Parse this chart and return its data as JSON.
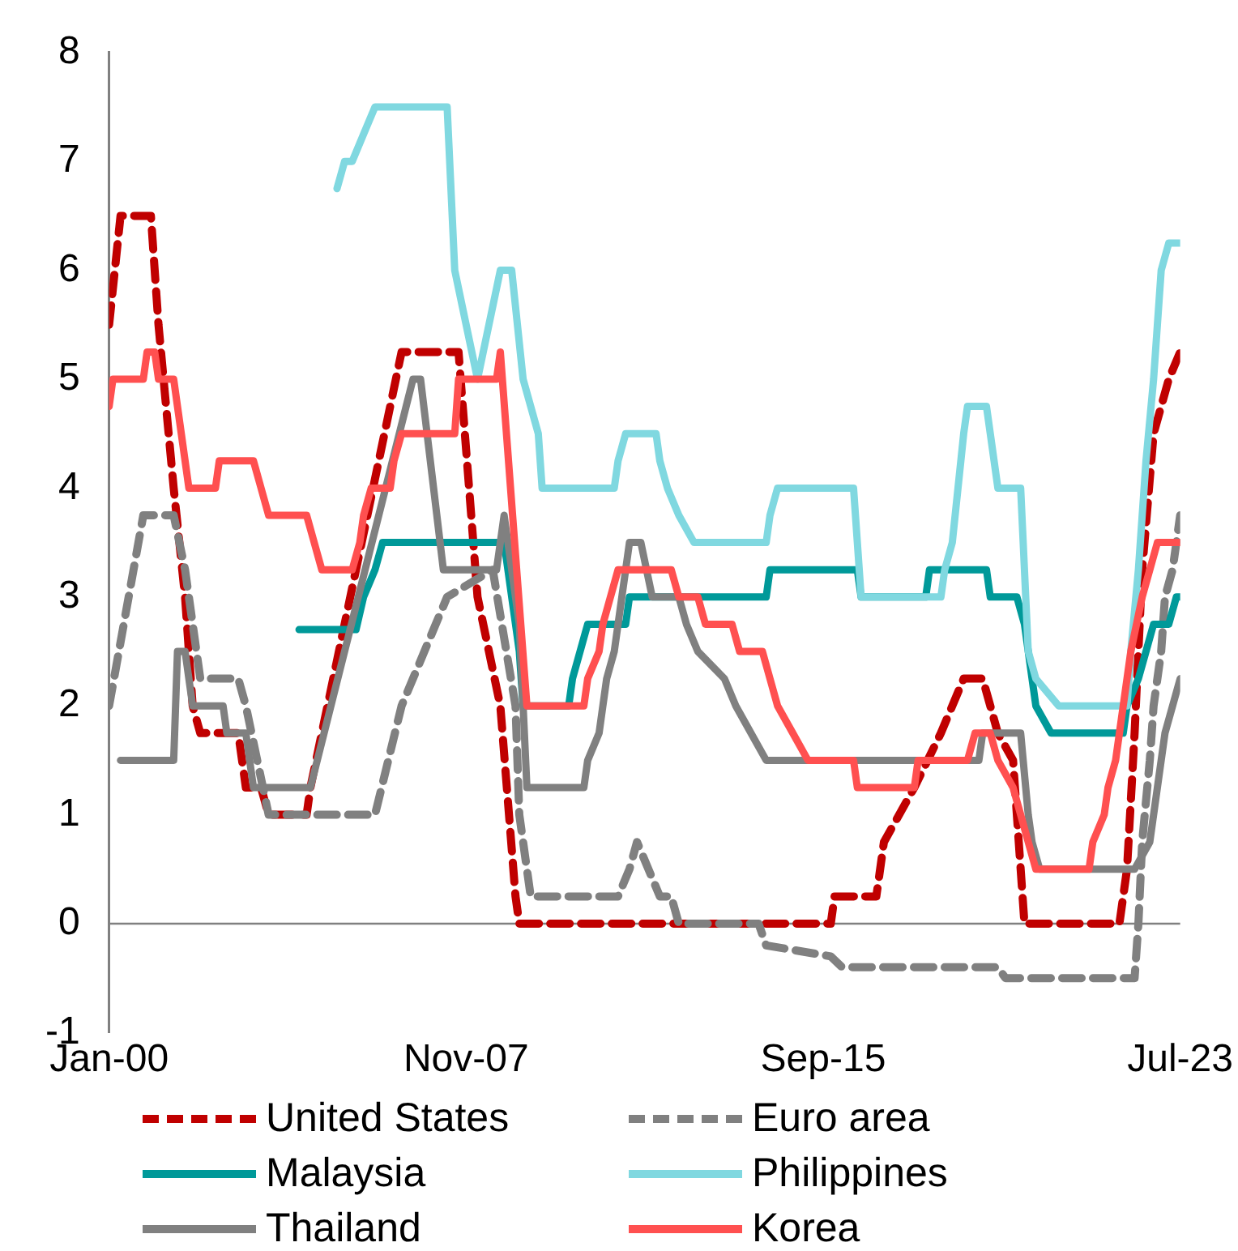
{
  "chart_data": {
    "type": "line",
    "xlim": [
      "2000-01",
      "2023-07"
    ],
    "xticks": [
      {
        "value": "2000-01",
        "label": "Jan-00"
      },
      {
        "value": "2007-11",
        "label": "Nov-07"
      },
      {
        "value": "2015-09",
        "label": "Sep-15"
      },
      {
        "value": "2023-07",
        "label": "Jul-23"
      }
    ],
    "ylim": [
      -1,
      8
    ],
    "yticks": [
      -1,
      0,
      1,
      2,
      3,
      4,
      5,
      6,
      7,
      8
    ],
    "grid": false,
    "legend": "bottom",
    "marker": "none",
    "ref_lines": [
      {
        "axis": "y",
        "value": 0,
        "color": "#808080"
      }
    ],
    "series": [
      {
        "name": "United States",
        "color": "#c00000",
        "line_style": "dashed",
        "x": [
          "2000-01",
          "2000-04",
          "2000-12",
          "2001-02",
          "2001-06",
          "2001-09",
          "2001-11",
          "2002-01",
          "2002-11",
          "2003-01",
          "2003-05",
          "2003-07",
          "2004-05",
          "2004-06",
          "2006-06",
          "2007-09",
          "2008-02",
          "2008-08",
          "2008-12",
          "2009-01",
          "2015-11",
          "2015-12",
          "2016-11",
          "2017-01",
          "2017-09",
          "2018-04",
          "2018-10",
          "2019-03",
          "2019-07",
          "2019-11",
          "2020-02",
          "2022-03",
          "2022-05",
          "2022-07",
          "2022-09",
          "2022-12",
          "2023-04",
          "2023-07"
        ],
        "values": [
          5.5,
          6.5,
          6.5,
          5.5,
          4.0,
          3.0,
          2.0,
          1.75,
          1.75,
          1.25,
          1.25,
          1.0,
          1.0,
          1.25,
          5.25,
          5.25,
          3.0,
          2.0,
          0.25,
          0,
          0,
          0.25,
          0.25,
          0.75,
          1.25,
          1.75,
          2.25,
          2.25,
          1.75,
          1.5,
          0,
          0,
          0.5,
          1.75,
          3.25,
          4.5,
          5.0,
          5.25
        ]
      },
      {
        "name": "Euro area",
        "color": "#808080",
        "line_style": "dashed",
        "x": [
          "2000-01",
          "2000-10",
          "2001-06",
          "2001-09",
          "2002-01",
          "2002-11",
          "2003-01",
          "2003-07",
          "2005-11",
          "2006-06",
          "2007-06",
          "2008-06",
          "2008-12",
          "2009-01",
          "2009-04",
          "2011-03",
          "2011-06",
          "2011-08",
          "2012-02",
          "2012-05",
          "2012-07",
          "2014-04",
          "2014-06",
          "2015-11",
          "2016-02",
          "2019-07",
          "2019-09",
          "2022-07",
          "2022-08",
          "2022-09",
          "2022-11",
          "2022-12",
          "2023-02",
          "2023-03",
          "2023-05",
          "2023-06",
          "2023-07"
        ],
        "values": [
          2.0,
          3.75,
          3.75,
          3.25,
          2.25,
          2.25,
          2.0,
          1.0,
          1.0,
          2.0,
          3.0,
          3.25,
          2.0,
          1.0,
          0.25,
          0.25,
          0.5,
          0.75,
          0.25,
          0.25,
          0,
          0,
          -0.2,
          -0.3,
          -0.4,
          -0.4,
          -0.5,
          -0.5,
          0,
          0.75,
          1.5,
          2.0,
          2.5,
          3.0,
          3.25,
          3.5,
          3.75
        ]
      },
      {
        "name": "Malaysia",
        "color": "#009999",
        "x": [
          "2004-03",
          "2005-06",
          "2005-08",
          "2005-11",
          "2006-01",
          "2008-09",
          "2009-01",
          "2009-02",
          "2010-02",
          "2010-03",
          "2010-05",
          "2010-07",
          "2011-05",
          "2011-06",
          "2014-06",
          "2014-07",
          "2016-06",
          "2016-07",
          "2017-12",
          "2018-01",
          "2019-04",
          "2019-05",
          "2019-12",
          "2020-02",
          "2020-03",
          "2020-05",
          "2020-09",
          "2022-04",
          "2022-05",
          "2022-08",
          "2022-10",
          "2022-12",
          "2023-04",
          "2023-06",
          "2023-07"
        ],
        "values": [
          2.7,
          2.7,
          3.0,
          3.25,
          3.5,
          3.5,
          2.5,
          2.0,
          2.0,
          2.25,
          2.5,
          2.75,
          2.75,
          3.0,
          3.0,
          3.25,
          3.25,
          3.0,
          3.0,
          3.25,
          3.25,
          3.0,
          3.0,
          2.75,
          2.5,
          2.0,
          1.75,
          1.75,
          2.0,
          2.25,
          2.5,
          2.75,
          2.75,
          3.0,
          3.0
        ]
      },
      {
        "name": "Philippines",
        "color": "#80d8e0",
        "x": [
          "2005-01",
          "2005-03",
          "2005-05",
          "2005-08",
          "2005-11",
          "2007-06",
          "2007-08",
          "2008-02",
          "2008-08",
          "2008-11",
          "2009-02",
          "2009-06",
          "2009-07",
          "2011-02",
          "2011-03",
          "2011-05",
          "2012-01",
          "2012-02",
          "2012-04",
          "2012-07",
          "2012-11",
          "2014-06",
          "2014-07",
          "2014-09",
          "2016-05",
          "2016-07",
          "2018-04",
          "2018-05",
          "2018-07",
          "2018-10",
          "2018-11",
          "2019-04",
          "2019-05",
          "2019-07",
          "2020-01",
          "2020-03",
          "2020-05",
          "2020-11",
          "2022-05",
          "2022-06",
          "2022-08",
          "2022-10",
          "2022-12",
          "2023-01",
          "2023-02",
          "2023-04",
          "2023-07"
        ],
        "values": [
          6.75,
          7.0,
          7.0,
          7.25,
          7.5,
          7.5,
          6.0,
          5.0,
          6.0,
          6.0,
          5.0,
          4.5,
          4.0,
          4.0,
          4.25,
          4.5,
          4.5,
          4.25,
          4.0,
          3.75,
          3.5,
          3.5,
          3.75,
          4.0,
          4.0,
          3.0,
          3.0,
          3.25,
          3.5,
          4.5,
          4.75,
          4.75,
          4.5,
          4.0,
          4.0,
          2.5,
          2.25,
          2.0,
          2.0,
          2.5,
          3.25,
          4.25,
          5.0,
          5.5,
          6.0,
          6.25,
          6.25
        ]
      },
      {
        "name": "Thailand",
        "color": "#808080",
        "x": [
          "2000-04",
          "2001-06",
          "2001-07",
          "2001-09",
          "2001-10",
          "2001-11",
          "2002-07",
          "2002-08",
          "2003-01",
          "2003-03",
          "2004-06",
          "2006-09",
          "2006-11",
          "2007-05",
          "2008-07",
          "2008-09",
          "2009-01",
          "2009-03",
          "2010-06",
          "2010-07",
          "2010-10",
          "2010-11",
          "2010-12",
          "2011-02",
          "2011-06",
          "2011-09",
          "2011-12",
          "2012-07",
          "2012-09",
          "2012-12",
          "2013-07",
          "2013-10",
          "2014-06",
          "2019-02",
          "2019-03",
          "2020-01",
          "2020-03",
          "2020-04",
          "2020-06",
          "2022-07",
          "2022-11",
          "2022-12",
          "2023-01",
          "2023-02",
          "2023-03",
          "2023-05",
          "2023-07"
        ],
        "values": [
          1.5,
          1.5,
          2.5,
          2.5,
          2.25,
          2.0,
          2.0,
          1.75,
          1.75,
          1.25,
          1.25,
          5.0,
          5.0,
          3.25,
          3.25,
          3.75,
          2.75,
          1.25,
          1.25,
          1.5,
          1.75,
          2.0,
          2.25,
          2.5,
          3.5,
          3.5,
          3.0,
          3.0,
          2.75,
          2.5,
          2.25,
          2.0,
          1.5,
          1.5,
          1.75,
          1.75,
          1.0,
          0.75,
          0.5,
          0.5,
          0.75,
          1.0,
          1.25,
          1.5,
          1.75,
          2.0,
          2.25
        ]
      },
      {
        "name": "Korea",
        "color": "#ff5050",
        "x": [
          "2000-01",
          "2000-02",
          "2000-10",
          "2000-11",
          "2001-01",
          "2001-02",
          "2001-06",
          "2001-08",
          "2001-10",
          "2002-05",
          "2002-06",
          "2003-03",
          "2003-05",
          "2003-07",
          "2004-05",
          "2004-07",
          "2004-09",
          "2005-05",
          "2005-07",
          "2005-08",
          "2005-10",
          "2006-03",
          "2006-04",
          "2006-06",
          "2007-08",
          "2007-09",
          "2008-07",
          "2008-08",
          "2009-03",
          "2010-06",
          "2010-07",
          "2010-10",
          "2010-11",
          "2011-01",
          "2011-03",
          "2012-05",
          "2012-07",
          "2012-12",
          "2013-02",
          "2013-09",
          "2013-11",
          "2014-05",
          "2014-07",
          "2014-09",
          "2015-01",
          "2015-05",
          "2016-05",
          "2016-06",
          "2017-09",
          "2017-10",
          "2018-11",
          "2019-01",
          "2019-05",
          "2019-07",
          "2019-11",
          "2020-03",
          "2020-05",
          "2021-07",
          "2021-08",
          "2021-11",
          "2021-12",
          "2022-02",
          "2022-03",
          "2022-05",
          "2022-06",
          "2022-09",
          "2022-11",
          "2023-01",
          "2023-07"
        ],
        "values": [
          4.75,
          5.0,
          5.0,
          5.25,
          5.25,
          5.0,
          5.0,
          4.5,
          4.0,
          4.0,
          4.25,
          4.25,
          4.0,
          3.75,
          3.75,
          3.5,
          3.25,
          3.25,
          3.5,
          3.75,
          4.0,
          4.0,
          4.25,
          4.5,
          4.5,
          5.0,
          5.0,
          5.25,
          2.0,
          2.0,
          2.25,
          2.5,
          2.75,
          3.0,
          3.25,
          3.25,
          3.0,
          3.0,
          2.75,
          2.75,
          2.5,
          2.5,
          2.25,
          2.0,
          1.75,
          1.5,
          1.5,
          1.25,
          1.25,
          1.5,
          1.5,
          1.75,
          1.75,
          1.5,
          1.25,
          0.75,
          0.5,
          0.5,
          0.75,
          1.0,
          1.25,
          1.5,
          1.75,
          2.25,
          2.5,
          3.0,
          3.25,
          3.5,
          3.5
        ]
      }
    ]
  }
}
